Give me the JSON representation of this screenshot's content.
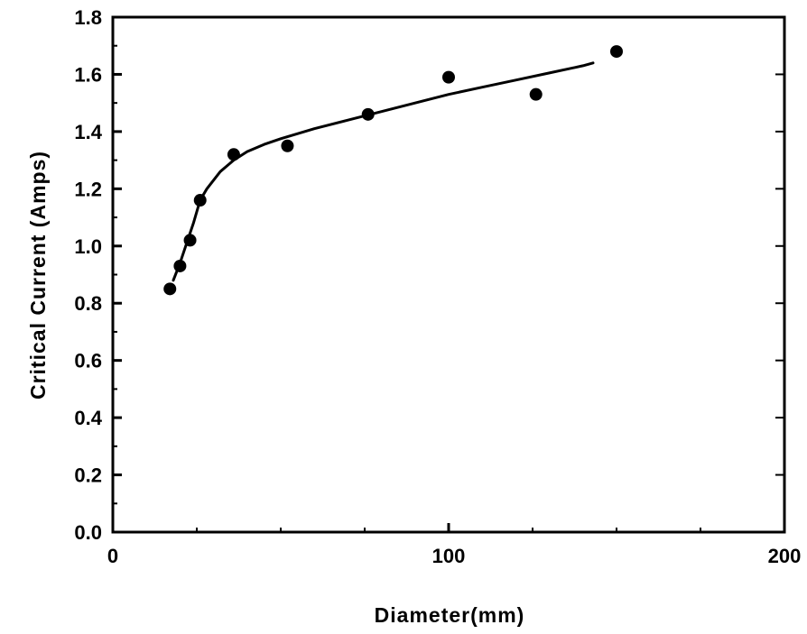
{
  "chart_data": {
    "type": "scatter",
    "title": "",
    "xlabel": "Diameter(mm)",
    "ylabel": "Critical   Current   (Amps)",
    "xlim": [
      0,
      200
    ],
    "ylim": [
      0.0,
      1.8
    ],
    "x_ticks": [
      0,
      100,
      200
    ],
    "x_tick_labels": [
      "0",
      "100",
      "200"
    ],
    "y_ticks": [
      0.0,
      0.2,
      0.4,
      0.6,
      0.8,
      1.0,
      1.2,
      1.4,
      1.6,
      1.8
    ],
    "y_tick_labels": [
      "0.0",
      "0.2",
      "0.4",
      "0.6",
      "0.8",
      "1.0",
      "1.2",
      "1.4",
      "1.6",
      "1.8"
    ],
    "grid": false,
    "legend": "none",
    "series": [
      {
        "type": "scatter",
        "x": [
          17,
          20,
          23,
          26,
          36,
          52,
          76,
          100,
          126,
          150
        ],
        "y": [
          0.85,
          0.93,
          1.02,
          1.16,
          1.32,
          1.35,
          1.46,
          1.59,
          1.53,
          1.68
        ]
      },
      {
        "type": "line",
        "x": [
          18,
          20,
          22,
          24,
          26,
          28,
          32,
          36,
          40,
          45,
          50,
          60,
          70,
          80,
          90,
          100,
          110,
          120,
          130,
          140,
          143
        ],
        "y": [
          0.88,
          0.94,
          1.01,
          1.08,
          1.16,
          1.2,
          1.26,
          1.3,
          1.33,
          1.355,
          1.375,
          1.41,
          1.44,
          1.47,
          1.5,
          1.53,
          1.555,
          1.58,
          1.605,
          1.63,
          1.64
        ]
      }
    ],
    "colors": {
      "marker": "#000000",
      "line": "#000000",
      "axis": "#000000"
    }
  }
}
